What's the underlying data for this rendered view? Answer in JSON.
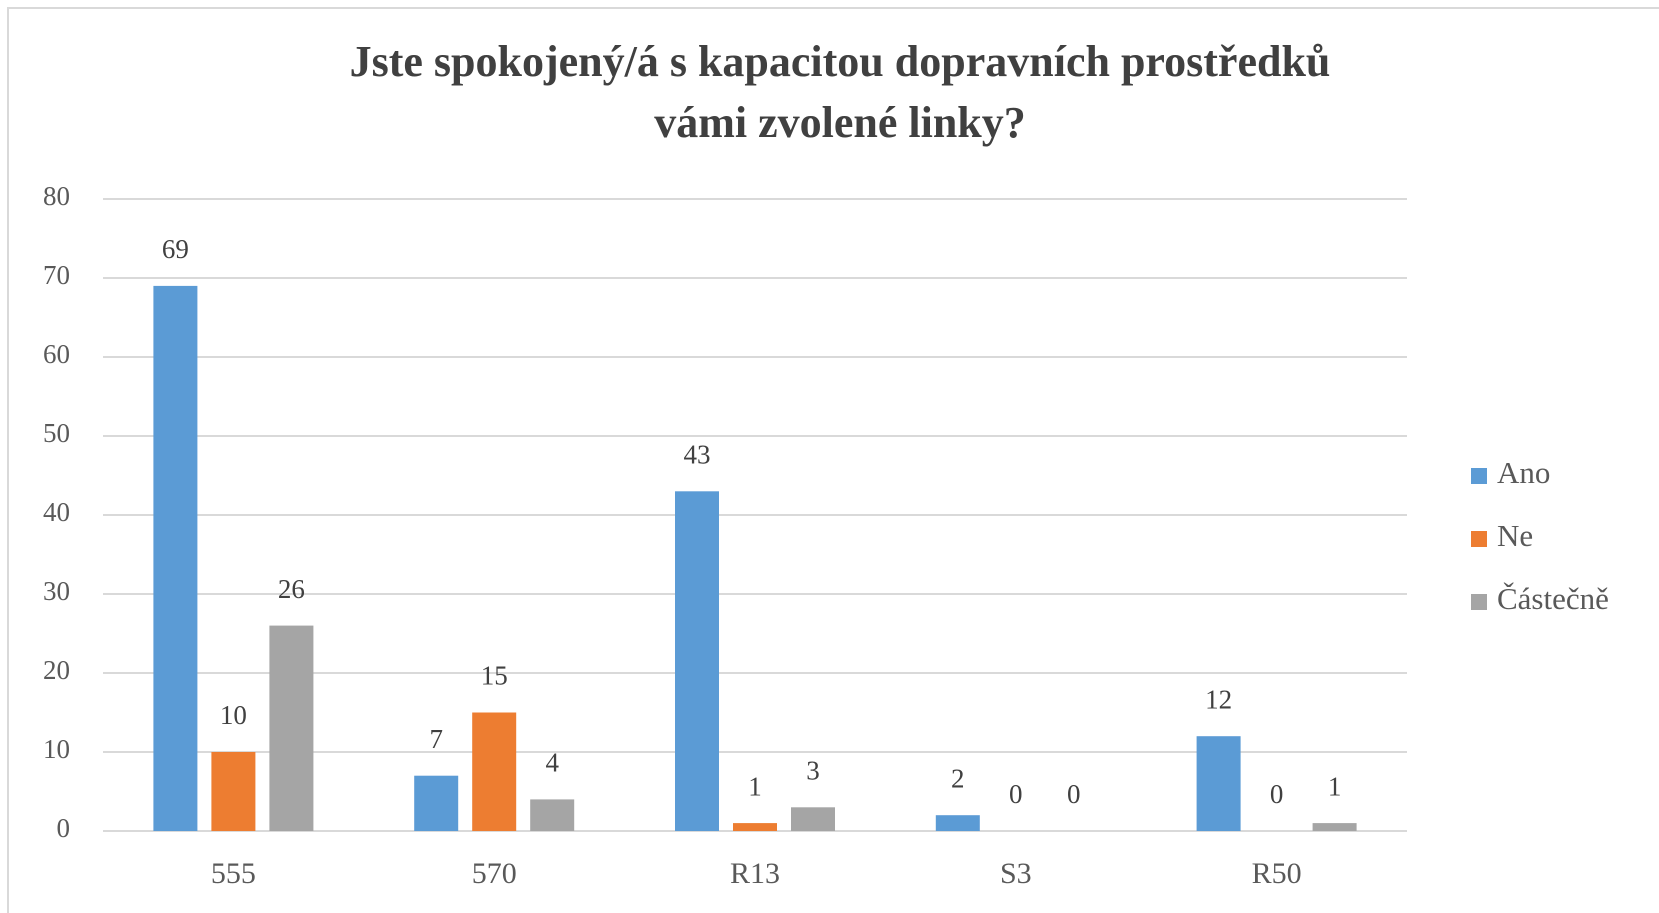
{
  "chart_data": {
    "type": "bar",
    "title": [
      "Jste spokojený/á s kapacitou dopravních prostředků",
      "vámi zvolené linky?"
    ],
    "categories": [
      "555",
      "570",
      "R13",
      "S3",
      "R50"
    ],
    "series": [
      {
        "name": "Ano",
        "color": "#5b9bd5",
        "values": [
          69,
          7,
          43,
          2,
          12
        ]
      },
      {
        "name": "Ne",
        "color": "#ed7d31",
        "values": [
          10,
          15,
          1,
          0,
          0
        ]
      },
      {
        "name": "Částečně",
        "color": "#a5a5a5",
        "values": [
          26,
          4,
          3,
          0,
          1
        ]
      }
    ],
    "ylim": [
      0,
      80
    ],
    "yticks": [
      0,
      10,
      20,
      30,
      40,
      50,
      60,
      70,
      80
    ],
    "grid": true,
    "legend": "right"
  }
}
